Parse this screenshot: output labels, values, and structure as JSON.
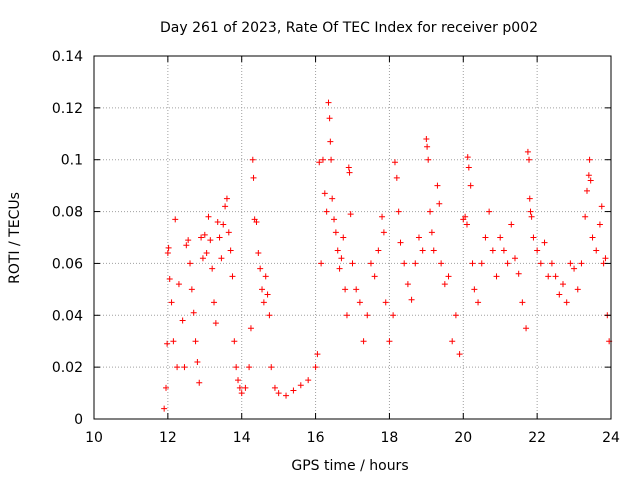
{
  "chart_data": {
    "type": "scatter",
    "title": "Day 261 of 2023, Rate Of TEC Index for receiver p002",
    "xlabel": "GPS time / hours",
    "ylabel": "ROTI / TECUs",
    "xlim": [
      10,
      24
    ],
    "ylim": [
      0,
      0.14
    ],
    "xticks": [
      "10",
      "12",
      "14",
      "16",
      "18",
      "20",
      "22",
      "24"
    ],
    "yticks": [
      "0",
      "0.02",
      "0.04",
      "0.06",
      "0.08",
      "0.1",
      "0.12",
      "0.14"
    ],
    "grid": true,
    "marker": "+",
    "color": "#ff0000",
    "series": [
      {
        "points": [
          [
            11.9,
            0.004
          ],
          [
            11.95,
            0.012
          ],
          [
            11.98,
            0.029
          ],
          [
            12.0,
            0.064
          ],
          [
            12.02,
            0.066
          ],
          [
            12.05,
            0.054
          ],
          [
            12.1,
            0.045
          ],
          [
            12.15,
            0.03
          ],
          [
            12.2,
            0.077
          ],
          [
            12.25,
            0.02
          ],
          [
            12.3,
            0.052
          ],
          [
            12.4,
            0.038
          ],
          [
            12.45,
            0.02
          ],
          [
            12.5,
            0.067
          ],
          [
            12.55,
            0.069
          ],
          [
            12.6,
            0.06
          ],
          [
            12.65,
            0.05
          ],
          [
            12.7,
            0.041
          ],
          [
            12.75,
            0.03
          ],
          [
            12.8,
            0.022
          ],
          [
            12.85,
            0.014
          ],
          [
            12.9,
            0.07
          ],
          [
            12.95,
            0.062
          ],
          [
            13.0,
            0.071
          ],
          [
            13.05,
            0.064
          ],
          [
            13.1,
            0.078
          ],
          [
            13.15,
            0.069
          ],
          [
            13.2,
            0.058
          ],
          [
            13.25,
            0.045
          ],
          [
            13.3,
            0.037
          ],
          [
            13.35,
            0.076
          ],
          [
            13.4,
            0.07
          ],
          [
            13.45,
            0.062
          ],
          [
            13.5,
            0.075
          ],
          [
            13.55,
            0.082
          ],
          [
            13.6,
            0.085
          ],
          [
            13.65,
            0.072
          ],
          [
            13.7,
            0.065
          ],
          [
            13.75,
            0.055
          ],
          [
            13.8,
            0.03
          ],
          [
            13.85,
            0.02
          ],
          [
            13.9,
            0.015
          ],
          [
            13.95,
            0.012
          ],
          [
            14.0,
            0.01
          ],
          [
            14.1,
            0.012
          ],
          [
            14.2,
            0.02
          ],
          [
            14.25,
            0.035
          ],
          [
            14.3,
            0.1
          ],
          [
            14.32,
            0.093
          ],
          [
            14.35,
            0.077
          ],
          [
            14.4,
            0.076
          ],
          [
            14.45,
            0.064
          ],
          [
            14.5,
            0.058
          ],
          [
            14.55,
            0.05
          ],
          [
            14.6,
            0.045
          ],
          [
            14.65,
            0.055
          ],
          [
            14.7,
            0.048
          ],
          [
            14.75,
            0.04
          ],
          [
            14.8,
            0.02
          ],
          [
            14.9,
            0.012
          ],
          [
            15.0,
            0.01
          ],
          [
            15.2,
            0.009
          ],
          [
            15.4,
            0.011
          ],
          [
            15.6,
            0.013
          ],
          [
            15.8,
            0.015
          ],
          [
            16.0,
            0.02
          ],
          [
            16.05,
            0.025
          ],
          [
            16.1,
            0.099
          ],
          [
            16.15,
            0.06
          ],
          [
            16.2,
            0.1
          ],
          [
            16.25,
            0.087
          ],
          [
            16.3,
            0.08
          ],
          [
            16.35,
            0.122
          ],
          [
            16.38,
            0.116
          ],
          [
            16.4,
            0.107
          ],
          [
            16.42,
            0.1
          ],
          [
            16.45,
            0.085
          ],
          [
            16.5,
            0.077
          ],
          [
            16.55,
            0.072
          ],
          [
            16.6,
            0.065
          ],
          [
            16.65,
            0.058
          ],
          [
            16.7,
            0.062
          ],
          [
            16.75,
            0.07
          ],
          [
            16.8,
            0.05
          ],
          [
            16.85,
            0.04
          ],
          [
            16.9,
            0.097
          ],
          [
            16.92,
            0.095
          ],
          [
            16.95,
            0.079
          ],
          [
            17.0,
            0.06
          ],
          [
            17.1,
            0.05
          ],
          [
            17.2,
            0.045
          ],
          [
            17.3,
            0.03
          ],
          [
            17.4,
            0.04
          ],
          [
            17.5,
            0.06
          ],
          [
            17.6,
            0.055
          ],
          [
            17.7,
            0.065
          ],
          [
            17.8,
            0.078
          ],
          [
            17.85,
            0.072
          ],
          [
            17.9,
            0.045
          ],
          [
            18.0,
            0.03
          ],
          [
            18.1,
            0.04
          ],
          [
            18.15,
            0.099
          ],
          [
            18.2,
            0.093
          ],
          [
            18.25,
            0.08
          ],
          [
            18.3,
            0.068
          ],
          [
            18.4,
            0.06
          ],
          [
            18.5,
            0.052
          ],
          [
            18.6,
            0.046
          ],
          [
            18.7,
            0.06
          ],
          [
            18.8,
            0.07
          ],
          [
            18.9,
            0.065
          ],
          [
            19.0,
            0.108
          ],
          [
            19.02,
            0.105
          ],
          [
            19.05,
            0.1
          ],
          [
            19.1,
            0.08
          ],
          [
            19.15,
            0.072
          ],
          [
            19.2,
            0.065
          ],
          [
            19.3,
            0.09
          ],
          [
            19.35,
            0.083
          ],
          [
            19.4,
            0.06
          ],
          [
            19.5,
            0.052
          ],
          [
            19.6,
            0.055
          ],
          [
            19.7,
            0.03
          ],
          [
            19.8,
            0.04
          ],
          [
            19.9,
            0.025
          ],
          [
            20.0,
            0.077
          ],
          [
            20.05,
            0.078
          ],
          [
            20.1,
            0.075
          ],
          [
            20.12,
            0.101
          ],
          [
            20.15,
            0.097
          ],
          [
            20.2,
            0.09
          ],
          [
            20.25,
            0.06
          ],
          [
            20.3,
            0.05
          ],
          [
            20.4,
            0.045
          ],
          [
            20.5,
            0.06
          ],
          [
            20.6,
            0.07
          ],
          [
            20.7,
            0.08
          ],
          [
            20.8,
            0.065
          ],
          [
            20.9,
            0.055
          ],
          [
            21.0,
            0.07
          ],
          [
            21.1,
            0.065
          ],
          [
            21.2,
            0.06
          ],
          [
            21.3,
            0.075
          ],
          [
            21.4,
            0.062
          ],
          [
            21.5,
            0.056
          ],
          [
            21.6,
            0.045
          ],
          [
            21.7,
            0.035
          ],
          [
            21.75,
            0.103
          ],
          [
            21.78,
            0.1
          ],
          [
            21.8,
            0.085
          ],
          [
            21.82,
            0.08
          ],
          [
            21.85,
            0.078
          ],
          [
            21.9,
            0.07
          ],
          [
            22.0,
            0.065
          ],
          [
            22.1,
            0.06
          ],
          [
            22.2,
            0.068
          ],
          [
            22.3,
            0.055
          ],
          [
            22.4,
            0.06
          ],
          [
            22.5,
            0.055
          ],
          [
            22.6,
            0.048
          ],
          [
            22.7,
            0.052
          ],
          [
            22.8,
            0.045
          ],
          [
            22.9,
            0.06
          ],
          [
            23.0,
            0.058
          ],
          [
            23.1,
            0.05
          ],
          [
            23.2,
            0.06
          ],
          [
            23.3,
            0.078
          ],
          [
            23.35,
            0.088
          ],
          [
            23.4,
            0.094
          ],
          [
            23.42,
            0.1
          ],
          [
            23.45,
            0.092
          ],
          [
            23.5,
            0.07
          ],
          [
            23.6,
            0.065
          ],
          [
            23.7,
            0.075
          ],
          [
            23.75,
            0.082
          ],
          [
            23.8,
            0.06
          ],
          [
            23.85,
            0.062
          ],
          [
            23.9,
            0.04
          ],
          [
            23.95,
            0.03
          ]
        ]
      }
    ]
  }
}
